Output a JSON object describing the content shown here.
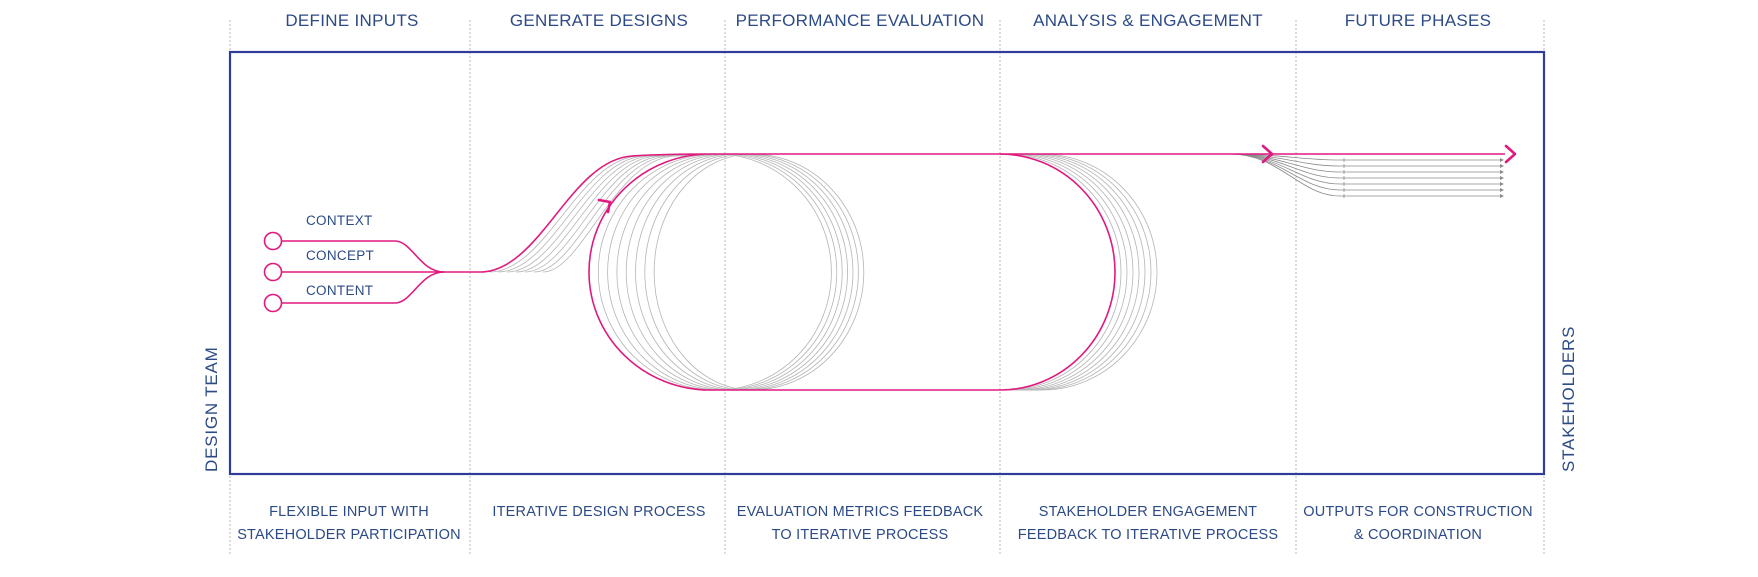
{
  "phases": [
    {
      "title": "DEFINE INPUTS",
      "desc_line1": "FLEXIBLE INPUT WITH",
      "desc_line2": "STAKEHOLDER PARTICIPATION"
    },
    {
      "title": "GENERATE DESIGNS",
      "desc_line1": "ITERATIVE DESIGN PROCESS",
      "desc_line2": ""
    },
    {
      "title": "PERFORMANCE EVALUATION",
      "desc_line1": "EVALUATION METRICS FEEDBACK",
      "desc_line2": "TO ITERATIVE PROCESS"
    },
    {
      "title": "ANALYSIS & ENGAGEMENT",
      "desc_line1": "STAKEHOLDER ENGAGEMENT",
      "desc_line2": "FEEDBACK TO ITERATIVE PROCESS"
    },
    {
      "title": "FUTURE PHASES",
      "desc_line1": "OUTPUTS FOR CONSTRUCTION",
      "desc_line2": "& COORDINATION"
    }
  ],
  "inputs": [
    "CONTEXT",
    "CONCEPT",
    "CONTENT"
  ],
  "left_label": "DESIGN TEAM",
  "right_label": "STAKEHOLDERS",
  "colors": {
    "accent": "#e0197f",
    "frame": "#2f3c9a",
    "text": "#2c4a86",
    "ghost": "#b5b5b5"
  }
}
